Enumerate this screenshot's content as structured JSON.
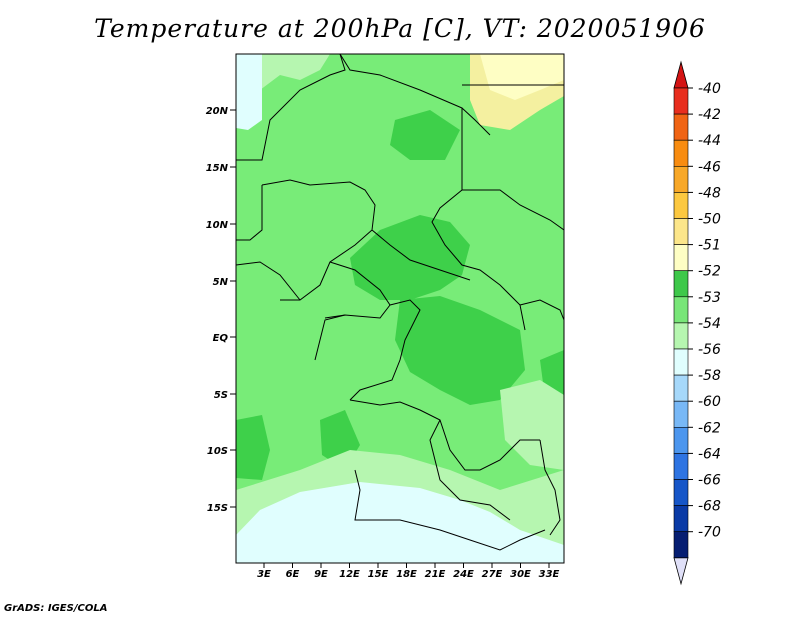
{
  "title": "Temperature at 200hPa [C], VT: 2020051906",
  "footer": "GrADS: IGES/COLA",
  "map": {
    "lat_labels": [
      "20N",
      "15N",
      "10N",
      "5N",
      "EQ",
      "5S",
      "10S",
      "15S"
    ],
    "lon_labels": [
      "3E",
      "6E",
      "9E",
      "12E",
      "15E",
      "18E",
      "21E",
      "24E",
      "27E",
      "30E",
      "33E"
    ],
    "field_colors": {
      "level_53": "#78ec78",
      "level_52": "#3ed04a",
      "level_54": "#b6f6b0",
      "level_56": "#e0fefe",
      "level_50": "#f4f0a0"
    }
  },
  "colorbar": {
    "labels": [
      "-40",
      "-42",
      "-44",
      "-46",
      "-48",
      "-50",
      "-51",
      "-52",
      "-53",
      "-54",
      "-56",
      "-58",
      "-60",
      "-62",
      "-64",
      "-66",
      "-68",
      "-70"
    ],
    "colors": [
      "#e82e1e",
      "#f06414",
      "#f88c10",
      "#f8a828",
      "#fcc840",
      "#fce68a",
      "#fefec4",
      "#3ec84a",
      "#78e678",
      "#b6f6b0",
      "#e0fefe",
      "#a6d8fa",
      "#78b8f6",
      "#4c96ee",
      "#2e74e2",
      "#1656c8",
      "#0a3aa6",
      "#061e72"
    ],
    "top_arrow_color": "#d41414",
    "bottom_arrow_color": "#e0e0f8"
  }
}
